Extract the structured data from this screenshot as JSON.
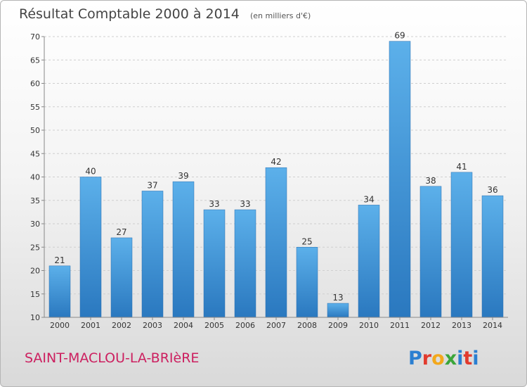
{
  "chart_data": {
    "type": "bar",
    "title": "Résultat Comptable 2000 à 2014",
    "subtitle": "(en milliers d'€)",
    "categories": [
      "2000",
      "2001",
      "2002",
      "2003",
      "2004",
      "2005",
      "2006",
      "2007",
      "2008",
      "2009",
      "2010",
      "2011",
      "2012",
      "2013",
      "2014"
    ],
    "values": [
      21,
      40,
      27,
      37,
      39,
      33,
      33,
      42,
      25,
      13,
      34,
      69,
      38,
      41,
      36
    ],
    "ylim": [
      10,
      70
    ],
    "yticks": [
      10,
      15,
      20,
      25,
      30,
      35,
      40,
      45,
      50,
      55,
      60,
      65,
      70
    ],
    "xlabel": "",
    "ylabel": "",
    "grid": true,
    "bar_color": "#3a8fd8"
  },
  "footer": {
    "commune": "SAINT-MACLOU-LA-BRIèRE",
    "logo_letters": [
      "P",
      "r",
      "o",
      "x",
      "i",
      "t",
      "i"
    ],
    "logo_colors": [
      "#2b7fd1",
      "#e23b2e",
      "#f3a81b",
      "#3aa53a",
      "#2b7fd1",
      "#e23b2e",
      "#2b7fd1"
    ]
  }
}
